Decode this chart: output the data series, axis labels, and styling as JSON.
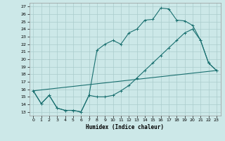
{
  "xlabel": "Humidex (Indice chaleur)",
  "background_color": "#cce8e8",
  "grid_color": "#aacccc",
  "line_color": "#1a7070",
  "xlim": [
    -0.5,
    23.5
  ],
  "ylim": [
    12.5,
    27.5
  ],
  "xticks": [
    0,
    1,
    2,
    3,
    4,
    5,
    6,
    7,
    8,
    9,
    10,
    11,
    12,
    13,
    14,
    15,
    16,
    17,
    18,
    19,
    20,
    21,
    22,
    23
  ],
  "yticks": [
    13,
    14,
    15,
    16,
    17,
    18,
    19,
    20,
    21,
    22,
    23,
    24,
    25,
    26,
    27
  ],
  "line1_x": [
    0,
    1,
    2,
    3,
    4,
    5,
    6,
    7,
    8,
    9,
    10,
    11,
    12,
    13,
    14,
    15,
    16,
    17,
    18,
    19,
    20,
    21,
    22,
    23
  ],
  "line1_y": [
    15.8,
    14.1,
    15.2,
    13.5,
    13.2,
    13.2,
    13.0,
    15.2,
    15.0,
    15.0,
    15.2,
    15.8,
    16.5,
    17.5,
    18.5,
    19.5,
    20.5,
    21.5,
    22.5,
    23.5,
    24.0,
    22.5,
    19.5,
    18.5
  ],
  "line2_x": [
    0,
    1,
    2,
    3,
    4,
    5,
    6,
    7,
    8,
    9,
    10,
    11,
    12,
    13,
    14,
    15,
    16,
    17,
    18,
    19,
    20,
    21,
    22,
    23
  ],
  "line2_y": [
    15.8,
    14.1,
    15.2,
    13.5,
    13.2,
    13.2,
    13.0,
    15.2,
    21.2,
    22.0,
    22.5,
    22.0,
    23.5,
    24.0,
    25.2,
    25.3,
    26.8,
    26.7,
    25.2,
    25.1,
    24.5,
    22.5,
    19.5,
    18.5
  ],
  "line3_x": [
    0,
    23
  ],
  "line3_y": [
    15.8,
    18.5
  ]
}
